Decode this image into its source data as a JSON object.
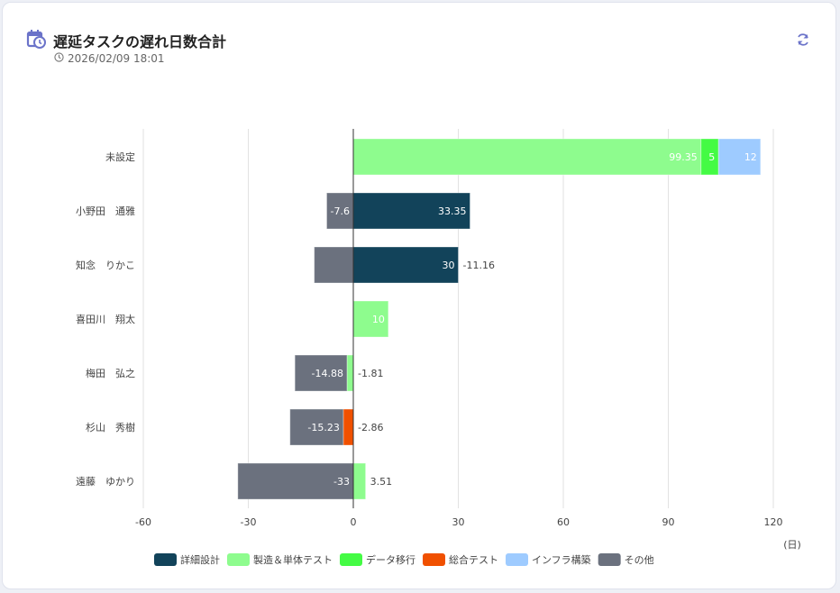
{
  "header": {
    "title": "遅延タスクの遅れ日数合計",
    "timestamp": "2026/02/09 18:01",
    "icons": {
      "title": "calendar-clock-icon",
      "timestamp": "clock-icon",
      "refresh": "refresh-icon"
    }
  },
  "chart_data": {
    "type": "bar",
    "orientation": "horizontal",
    "stacked": true,
    "title": "遅延タスクの遅れ日数合計",
    "xlabel": "(日)",
    "ylabel": "",
    "xlim": [
      -60,
      120
    ],
    "xticks": [
      -60,
      -30,
      0,
      30,
      60,
      90,
      120
    ],
    "grid": true,
    "legend_position": "bottom",
    "categories": [
      "未設定",
      "小野田　通雅",
      "知念　りかこ",
      "喜田川　翔太",
      "梅田　弘之",
      "杉山　秀樹",
      "遠藤　ゆかり"
    ],
    "series": [
      {
        "name": "詳細設計",
        "color": "#12435a",
        "values": [
          0,
          33.35,
          30,
          0,
          0,
          0,
          0
        ]
      },
      {
        "name": "製造＆単体テスト",
        "color": "#8efc8e",
        "values": [
          99.35,
          0,
          0,
          10,
          -1.81,
          0,
          3.51
        ]
      },
      {
        "name": "データ移行",
        "color": "#44fb44",
        "values": [
          5,
          0,
          0,
          0,
          0,
          0,
          0
        ]
      },
      {
        "name": "総合テスト",
        "color": "#f05000",
        "values": [
          0,
          0,
          0,
          0,
          0,
          -2.86,
          0
        ]
      },
      {
        "name": "インフラ構築",
        "color": "#9ecbff",
        "values": [
          12,
          0,
          0,
          0,
          0,
          0,
          0
        ]
      },
      {
        "name": "その他",
        "color": "#6b717e",
        "values": [
          0,
          -7.6,
          -11.16,
          0,
          -14.88,
          -15.23,
          -33
        ]
      }
    ]
  }
}
